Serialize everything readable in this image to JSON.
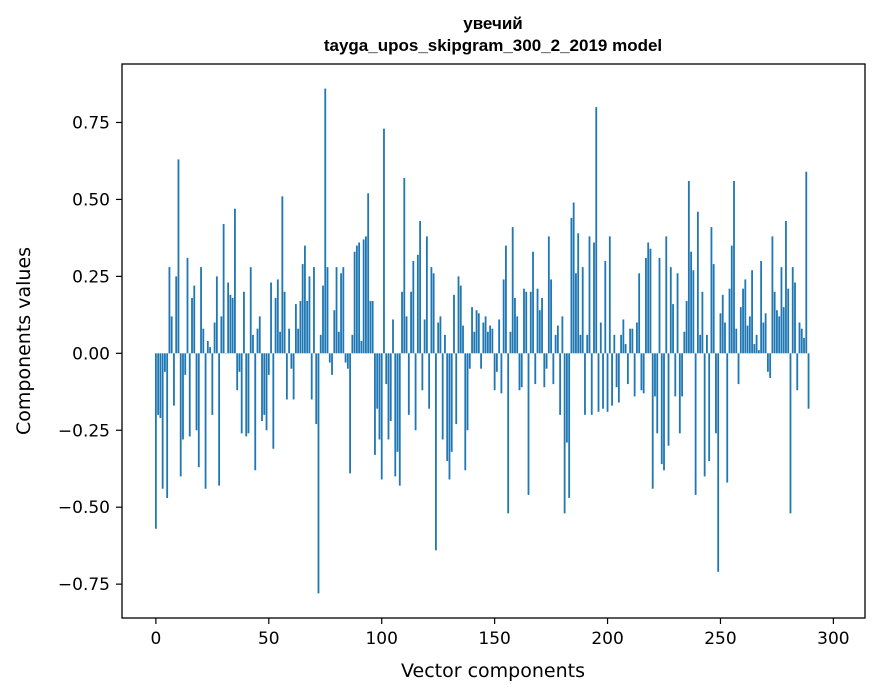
{
  "chart_data": {
    "type": "bar",
    "title": "увечий",
    "subtitle": "tayga_upos_skipgram_300_2_2019 model",
    "xlabel": "Vector components",
    "ylabel": "Components values",
    "xlim": [
      -15,
      314
    ],
    "ylim": [
      -0.86,
      0.94
    ],
    "xticks": [
      0,
      50,
      100,
      150,
      200,
      250,
      300
    ],
    "xtick_labels": [
      "0",
      "50",
      "100",
      "150",
      "200",
      "250",
      "300"
    ],
    "yticks": [
      0.75,
      0.5,
      0.25,
      0.0,
      -0.25,
      -0.5,
      -0.75
    ],
    "ytick_labels": [
      "0.75",
      "0.50",
      "0.25",
      "0.00",
      "−0.25",
      "−0.50",
      "−0.75"
    ],
    "grid": false,
    "bar_color": "#1f77b4",
    "x": "0..299",
    "values": [
      -0.57,
      -0.2,
      -0.21,
      -0.44,
      -0.06,
      -0.47,
      0.28,
      0.12,
      -0.17,
      0.25,
      0.63,
      -0.4,
      -0.28,
      -0.07,
      0.31,
      -0.27,
      0.18,
      0.22,
      -0.25,
      -0.37,
      0.28,
      0.08,
      -0.44,
      0.04,
      0.02,
      -0.2,
      0.1,
      0.25,
      -0.43,
      0.12,
      0.42,
      0.0,
      0.23,
      0.19,
      0.18,
      0.47,
      -0.12,
      -0.06,
      -0.26,
      0.2,
      -0.27,
      -0.26,
      0.28,
      0.06,
      -0.38,
      0.08,
      0.12,
      -0.22,
      -0.2,
      -0.25,
      -0.07,
      0.23,
      -0.31,
      0.18,
      0.24,
      0.07,
      0.51,
      0.2,
      -0.15,
      0.08,
      -0.05,
      -0.15,
      0.16,
      0.08,
      0.17,
      0.29,
      0.35,
      0.17,
      0.25,
      -0.15,
      0.28,
      -0.23,
      -0.78,
      0.06,
      0.22,
      0.86,
      0.28,
      -0.03,
      -0.07,
      0.14,
      0.28,
      0.07,
      0.26,
      0.28,
      -0.03,
      -0.05,
      -0.39,
      0.06,
      0.33,
      0.35,
      0.36,
      0.04,
      0.37,
      0.38,
      0.52,
      0.17,
      0.17,
      -0.33,
      -0.18,
      -0.28,
      -0.41,
      0.73,
      -0.1,
      -0.28,
      -0.22,
      0.11,
      -0.4,
      -0.32,
      -0.43,
      0.2,
      0.57,
      0.12,
      -0.2,
      0.2,
      0.3,
      -0.25,
      0.32,
      0.43,
      -0.12,
      0.11,
      0.38,
      -0.18,
      0.28,
      0.26,
      -0.64,
      0.1,
      0.12,
      -0.28,
      0.06,
      -0.35,
      -0.41,
      -0.32,
      0.19,
      -0.23,
      0.25,
      0.22,
      0.09,
      -0.38,
      -0.25,
      -0.05,
      0.15,
      0.07,
      0.14,
      0.13,
      -0.05,
      0.1,
      0.12,
      0.07,
      0.09,
      0.08,
      -0.12,
      -0.06,
      0.11,
      -0.13,
      0.24,
      0.35,
      -0.52,
      0.07,
      0.41,
      0.18,
      0.12,
      -0.12,
      -0.11,
      0.21,
      0.2,
      -0.46,
      0.2,
      0.33,
      -0.1,
      0.21,
      0.14,
      0.18,
      -0.11,
      -0.05,
      0.38,
      0.24,
      -0.1,
      0.06,
      0.09,
      -0.2,
      0.12,
      -0.52,
      -0.29,
      -0.47,
      0.44,
      0.49,
      0.26,
      0.39,
      0.06,
      0.28,
      -0.2,
      0.06,
      0.38,
      -0.2,
      0.36,
      0.8,
      -0.19,
      0.1,
      -0.18,
      0.3,
      -0.19,
      0.38,
      -0.17,
      0.06,
      -0.11,
      -0.16,
      0.06,
      0.11,
      0.03,
      -0.1,
      0.08,
      0.08,
      -0.14,
      0.1,
      0.26,
      -0.12,
      -0.13,
      0.31,
      0.36,
      0.34,
      -0.44,
      -0.14,
      -0.26,
      0.31,
      -0.36,
      -0.38,
      0.38,
      -0.3,
      0.28,
      0.16,
      -0.14,
      0.26,
      -0.26,
      -0.14,
      0.07,
      0.17,
      0.56,
      0.33,
      0.27,
      -0.46,
      0.46,
      0.06,
      0.2,
      -0.4,
      0.06,
      -0.35,
      0.41,
      0.29,
      -0.26,
      -0.71,
      0.13,
      0.19,
      0.1,
      -0.42,
      0.21,
      0.35,
      0.56,
      0.08,
      -0.1,
      0.15,
      0.21,
      0.24,
      0.09,
      0.12,
      0.27,
      0.03,
      0.06,
      0.01,
      0.3,
      0.1,
      0.13,
      -0.06,
      -0.08,
      0.38,
      0.2,
      0.14,
      0.12,
      0.28,
      0.15,
      0.43,
      0.21,
      -0.52,
      0.28,
      0.23,
      -0.12,
      0.1,
      0.08,
      0.05,
      0.59,
      -0.18
    ],
    "series": []
  }
}
